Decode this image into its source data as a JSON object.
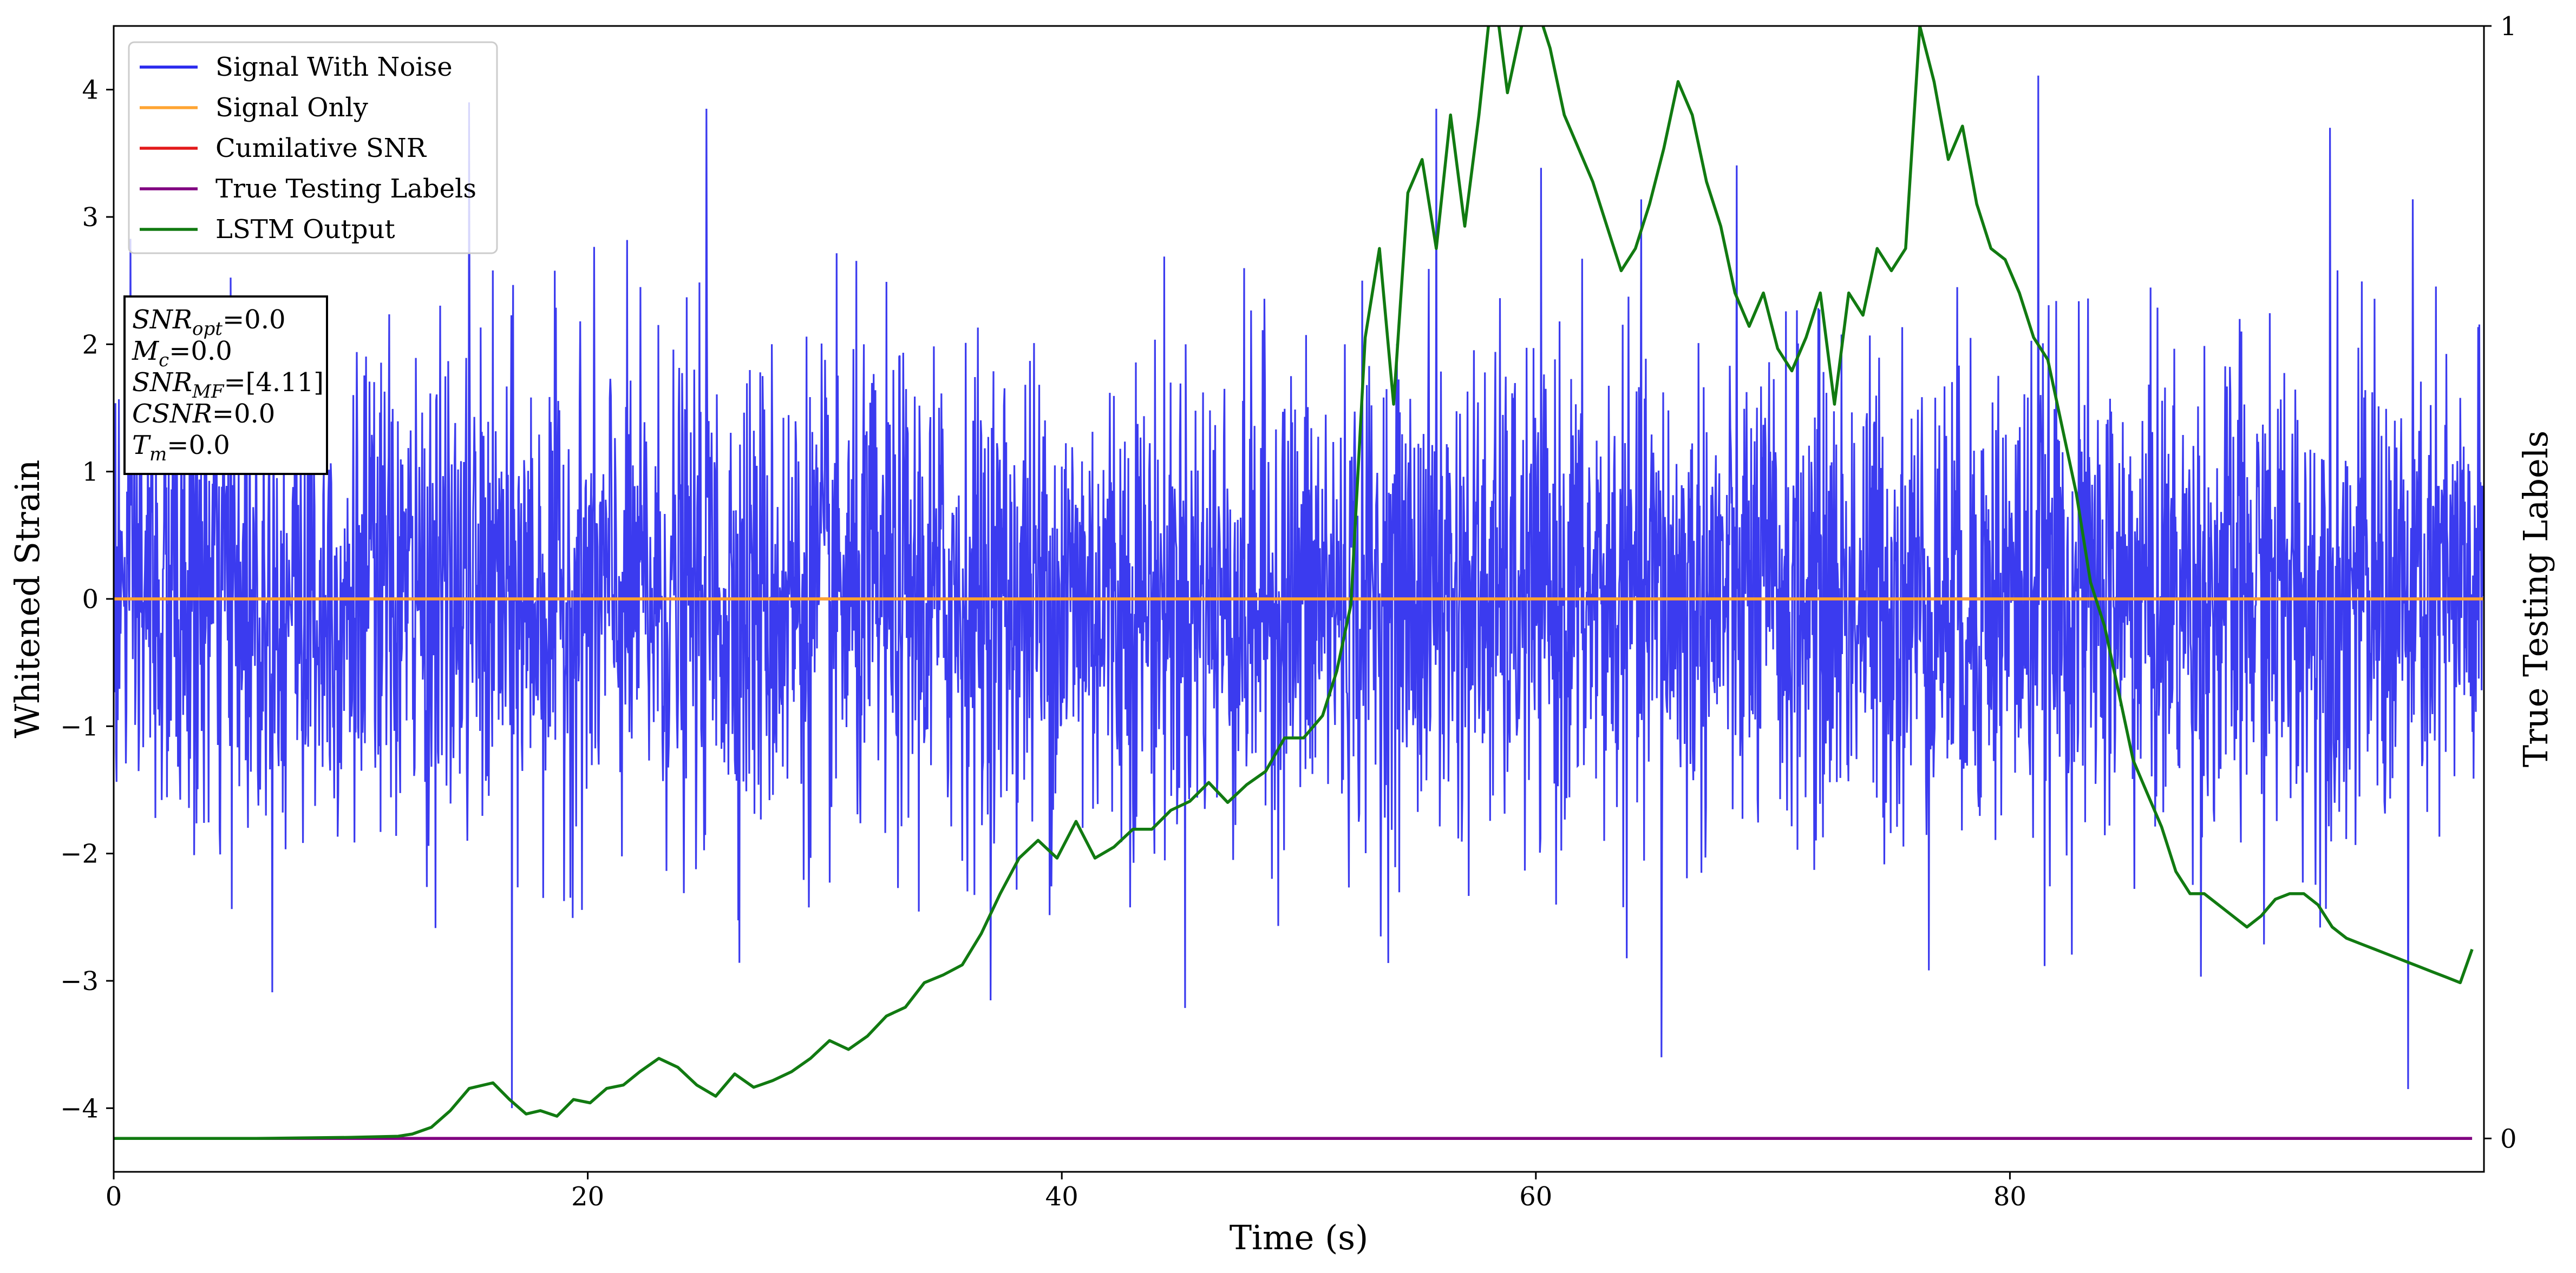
{
  "chart_data": {
    "type": "line",
    "xlabel": "Time (s)",
    "ylabel": "Whitened Strain",
    "y2label": "True Testing Labels",
    "xlim": [
      0,
      100
    ],
    "ylim": [
      -4.5,
      4.5
    ],
    "y2lim": [
      -0.03,
      1.0
    ],
    "x_ticks": [
      0,
      20,
      40,
      60,
      80
    ],
    "y_ticks": [
      -4,
      -3,
      -2,
      -1,
      0,
      1,
      2,
      3,
      4
    ],
    "y2_ticks": [
      0,
      1
    ],
    "grid": false,
    "legend_position": "top-left",
    "colors": {
      "noise": "#2a2aee",
      "signal": "#ffa533",
      "csnr": "#e31a1c",
      "labels": "#800080",
      "lstm": "#117a11"
    },
    "series": [
      {
        "name": "Signal With Noise",
        "axis": "left",
        "style": "dense-noise",
        "sample_count": 4096,
        "std": 0.95,
        "clip": [
          -4.0,
          4.11
        ],
        "note_peaks": [
          {
            "x": 16.8,
            "y": -4.0
          },
          {
            "x": 81.2,
            "y": 4.11
          },
          {
            "x": 96.8,
            "y": -3.85
          },
          {
            "x": 65.3,
            "y": -3.6
          },
          {
            "x": 15.0,
            "y": 3.9
          },
          {
            "x": 25.0,
            "y": 3.85
          },
          {
            "x": 55.8,
            "y": 3.85
          },
          {
            "x": 93.5,
            "y": 3.7
          }
        ]
      },
      {
        "name": "Signal Only",
        "axis": "left",
        "x": [
          0,
          100
        ],
        "y": [
          0,
          0
        ]
      },
      {
        "name": "Cumilative SNR",
        "axis": "left",
        "x": [
          0,
          100
        ],
        "y": [
          0,
          0
        ]
      },
      {
        "name": "True Testing Labels",
        "axis": "right",
        "x": [
          0,
          99.5
        ],
        "y": [
          0,
          0
        ]
      },
      {
        "name": "LSTM Output",
        "axis": "right",
        "x": [
          0,
          2,
          4,
          6,
          8,
          10,
          12,
          12.6,
          13.4,
          14.2,
          15.0,
          16.0,
          16.7,
          17.4,
          18.0,
          18.7,
          19.4,
          20.1,
          20.8,
          21.5,
          22.2,
          23.0,
          23.8,
          24.6,
          25.4,
          26.2,
          27.0,
          27.8,
          28.6,
          29.4,
          30.2,
          31.0,
          31.8,
          32.6,
          33.4,
          34.2,
          35.0,
          35.8,
          36.6,
          37.4,
          38.2,
          39.0,
          39.8,
          40.6,
          41.4,
          42.2,
          43.0,
          43.8,
          44.6,
          45.4,
          46.2,
          47.0,
          47.8,
          48.6,
          49.4,
          50.2,
          51.0,
          51.6,
          52.2,
          52.8,
          53.4,
          54.0,
          54.6,
          55.2,
          55.8,
          56.4,
          57.0,
          57.6,
          58.2,
          58.8,
          59.4,
          60.0,
          60.6,
          61.2,
          61.8,
          62.4,
          63.0,
          63.6,
          64.2,
          64.8,
          65.4,
          66.0,
          66.6,
          67.2,
          67.8,
          68.4,
          69.0,
          69.6,
          70.2,
          70.8,
          71.4,
          72.0,
          72.6,
          73.2,
          73.8,
          74.4,
          75.0,
          75.6,
          76.2,
          76.8,
          77.4,
          78.0,
          78.6,
          79.2,
          79.8,
          80.4,
          81.0,
          81.6,
          82.2,
          82.8,
          83.4,
          84.0,
          84.6,
          85.2,
          85.8,
          86.4,
          87.0,
          87.6,
          88.2,
          88.8,
          89.4,
          90.0,
          90.6,
          91.2,
          91.8,
          92.4,
          93.0,
          93.6,
          94.2,
          94.8,
          95.4,
          96.0,
          96.6,
          97.2,
          97.8,
          98.4,
          99.0,
          99.5
        ],
        "y": [
          0,
          0,
          0,
          0,
          0.0005,
          0.001,
          0.002,
          0.004,
          0.01,
          0.025,
          0.045,
          0.05,
          0.035,
          0.022,
          0.025,
          0.02,
          0.035,
          0.032,
          0.045,
          0.048,
          0.06,
          0.072,
          0.064,
          0.048,
          0.038,
          0.058,
          0.046,
          0.052,
          0.06,
          0.072,
          0.088,
          0.08,
          0.092,
          0.11,
          0.118,
          0.14,
          0.147,
          0.156,
          0.184,
          0.22,
          0.252,
          0.268,
          0.252,
          0.285,
          0.252,
          0.262,
          0.278,
          0.278,
          0.295,
          0.303,
          0.32,
          0.302,
          0.318,
          0.33,
          0.36,
          0.36,
          0.38,
          0.42,
          0.48,
          0.72,
          0.8,
          0.66,
          0.85,
          0.88,
          0.8,
          0.92,
          0.82,
          0.92,
          1.04,
          0.94,
          1.0,
          1.02,
          0.98,
          0.92,
          0.89,
          0.86,
          0.82,
          0.78,
          0.8,
          0.84,
          0.89,
          0.95,
          0.92,
          0.86,
          0.82,
          0.76,
          0.73,
          0.76,
          0.71,
          0.69,
          0.72,
          0.76,
          0.66,
          0.76,
          0.74,
          0.8,
          0.78,
          0.8,
          1.0,
          0.95,
          0.88,
          0.91,
          0.84,
          0.8,
          0.79,
          0.76,
          0.72,
          0.7,
          0.64,
          0.58,
          0.5,
          0.46,
          0.4,
          0.34,
          0.31,
          0.28,
          0.24,
          0.22,
          0.22,
          0.21,
          0.2,
          0.19,
          0.2,
          0.215,
          0.22,
          0.22,
          0.21,
          0.19,
          0.18,
          0.175,
          0.17,
          0.165,
          0.16,
          0.155,
          0.15,
          0.145,
          0.14,
          0.17
        ]
      }
    ],
    "legend": [
      "Signal With Noise",
      "Signal Only",
      "Cumilative SNR",
      "True Testing Labels",
      "LSTM Output"
    ],
    "annotation": {
      "lines": [
        {
          "sym": "SNR",
          "sub": "opt",
          "rest": "=0.0"
        },
        {
          "sym": "M",
          "sub": "c",
          "rest": "=0.0"
        },
        {
          "sym": "SNR",
          "sub": "MF",
          "rest": "=[4.11]"
        },
        {
          "sym": "CSNR",
          "sub": "",
          "rest": "=0.0"
        },
        {
          "sym": "T",
          "sub": "m",
          "rest": "=0.0"
        }
      ]
    }
  }
}
